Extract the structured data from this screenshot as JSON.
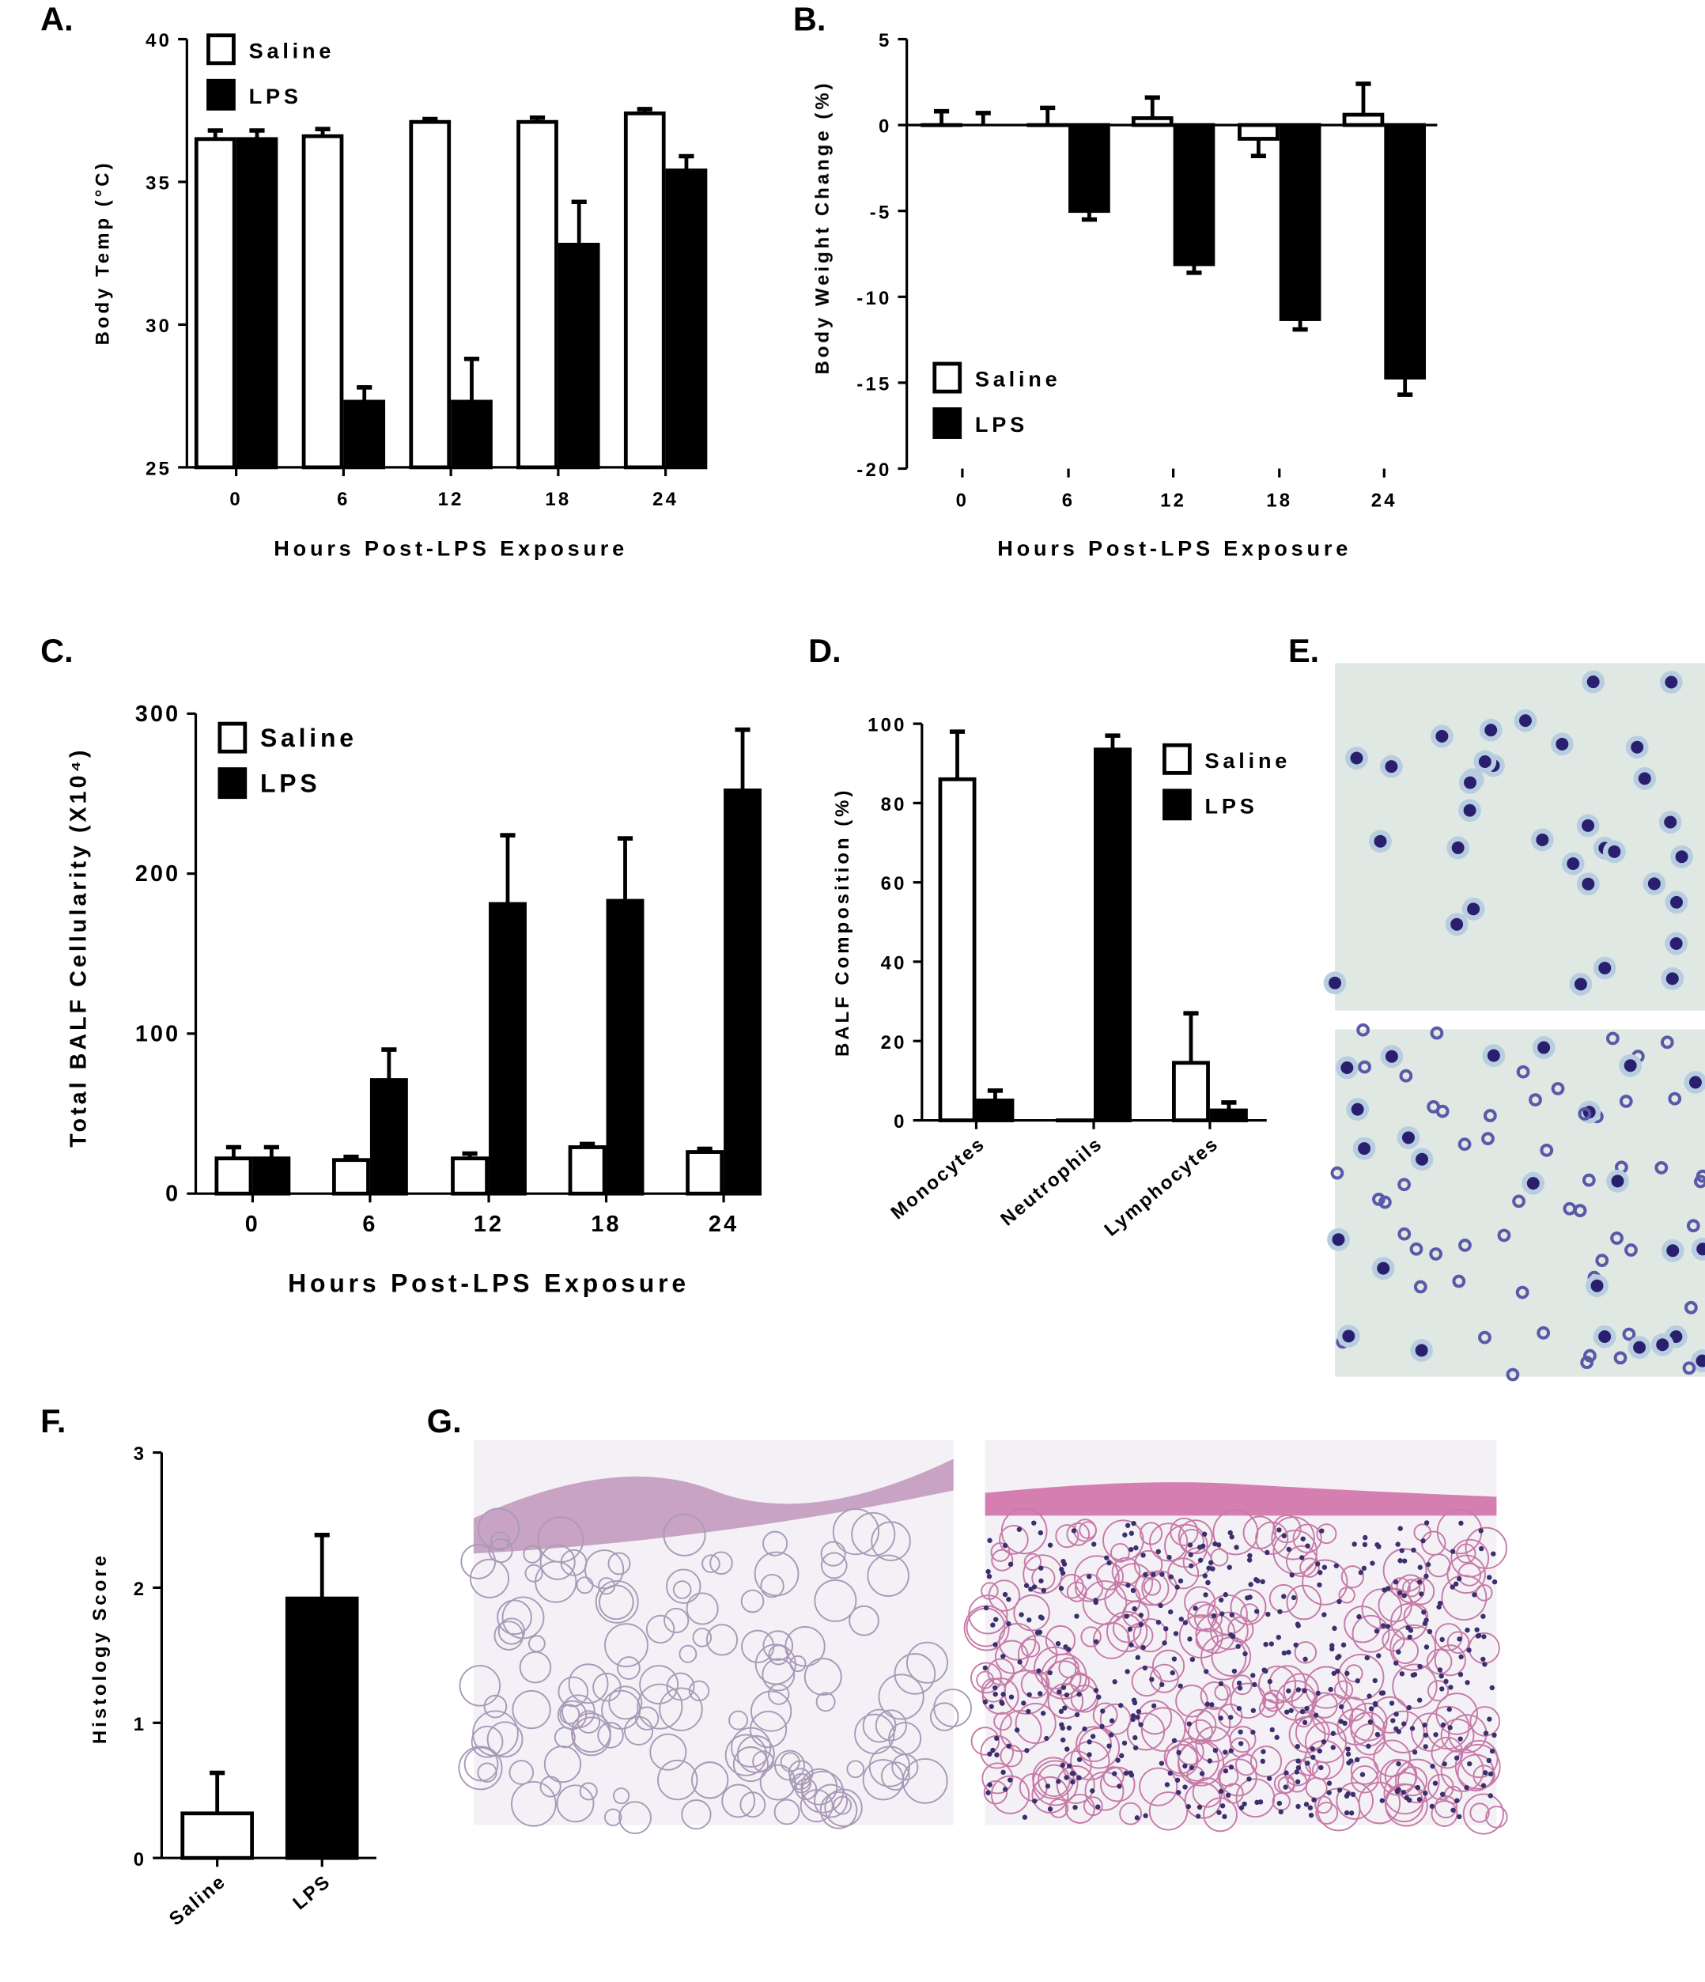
{
  "panels": {
    "A": "A.",
    "B": "B.",
    "C": "C.",
    "D": "D.",
    "E": "E.",
    "F": "F.",
    "G": "G."
  },
  "colors": {
    "saline": "#ffffff",
    "lps": "#000000",
    "stain_bg": "#dfe8e3",
    "nucleus": "#2a1f6e",
    "he_bg": "#f3f1f6",
    "he_tissue": "#c9a3c4",
    "he_nuclei": "#3c2f6e"
  },
  "chart_data": [
    {
      "id": "A",
      "type": "bar",
      "xlabel": "Hours Post-LPS Exposure",
      "ylabel": "Body Temp (°C)",
      "ylim": [
        25,
        40
      ],
      "yticks": [
        25,
        30,
        35,
        40
      ],
      "categories": [
        "0",
        "6",
        "12",
        "18",
        "24"
      ],
      "legend": "top-left",
      "series": [
        {
          "name": "Saline",
          "values": [
            36.5,
            36.6,
            37.1,
            37.1,
            37.4
          ],
          "errors": [
            0.3,
            0.25,
            0.1,
            0.15,
            0.15
          ]
        },
        {
          "name": "LPS",
          "values": [
            36.5,
            27.3,
            27.3,
            32.8,
            35.4
          ],
          "errors": [
            0.3,
            0.5,
            1.5,
            1.5,
            0.5
          ]
        }
      ]
    },
    {
      "id": "B",
      "type": "bar",
      "xlabel": "Hours Post-LPS Exposure",
      "ylabel": "Body Weight Change (%)",
      "ylim": [
        -20,
        5
      ],
      "yticks": [
        -20,
        -15,
        -10,
        -5,
        0,
        5
      ],
      "categories": [
        "0",
        "6",
        "12",
        "18",
        "24"
      ],
      "legend": "bottom-left",
      "series": [
        {
          "name": "Saline",
          "values": [
            0,
            0,
            0.4,
            -0.8,
            0.6
          ],
          "errors": [
            0.8,
            1.0,
            1.2,
            1.0,
            1.8
          ]
        },
        {
          "name": "LPS",
          "values": [
            0,
            -5.0,
            -8.1,
            -11.3,
            -14.7
          ],
          "errors": [
            0.7,
            0.5,
            0.5,
            0.6,
            1.0
          ]
        }
      ]
    },
    {
      "id": "C",
      "type": "bar",
      "xlabel": "Hours Post-LPS Exposure",
      "ylabel": "Total BALF Cellularity (X10⁴)",
      "ylim": [
        0,
        300
      ],
      "yticks": [
        0,
        100,
        200,
        300
      ],
      "categories": [
        "0",
        "6",
        "12",
        "18",
        "24"
      ],
      "legend": "top-left",
      "series": [
        {
          "name": "Saline",
          "values": [
            22,
            21,
            22,
            29,
            26
          ],
          "errors": [
            7,
            2,
            3,
            2,
            2
          ]
        },
        {
          "name": "LPS",
          "values": [
            22,
            71,
            181,
            183,
            252
          ],
          "errors": [
            7,
            19,
            43,
            39,
            38
          ]
        }
      ]
    },
    {
      "id": "D",
      "type": "bar",
      "xlabel": "",
      "ylabel": "BALF Composition (%)",
      "ylim": [
        0,
        100
      ],
      "yticks": [
        0,
        20,
        40,
        60,
        80,
        100
      ],
      "categories": [
        "Monocytes",
        "Neutrophils",
        "Lymphocytes"
      ],
      "legend": "top-right",
      "series": [
        {
          "name": "Saline",
          "values": [
            86,
            0,
            14.5
          ],
          "errors": [
            12,
            0,
            12.5
          ]
        },
        {
          "name": "LPS",
          "values": [
            5,
            93.5,
            2.5
          ],
          "errors": [
            2.5,
            3.5,
            2
          ]
        }
      ]
    },
    {
      "id": "F",
      "type": "bar",
      "xlabel": "",
      "ylabel": "Histology Score",
      "ylim": [
        0,
        3
      ],
      "yticks": [
        0,
        1,
        2,
        3
      ],
      "categories": [
        "Saline",
        "LPS"
      ],
      "legend": "none",
      "series": [
        {
          "name": "",
          "values": [
            0.33,
            1.92
          ],
          "errors": [
            0.3,
            0.47
          ]
        }
      ]
    }
  ]
}
